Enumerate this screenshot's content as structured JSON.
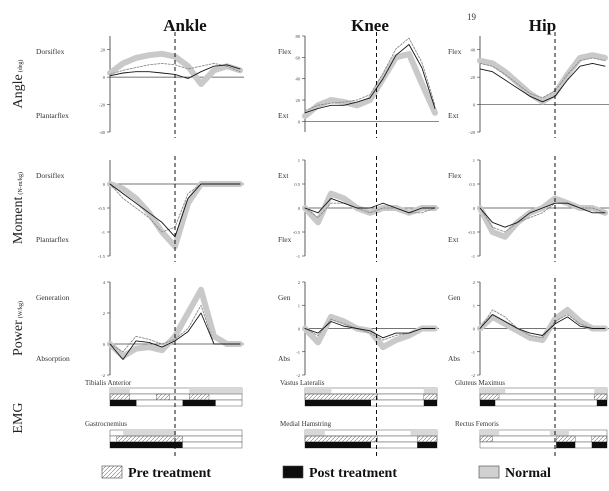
{
  "figure": {
    "page_number": "19",
    "legend": [
      "Pre treatment",
      "Post treatment",
      "Normal"
    ]
  },
  "chart_data": [
    {
      "type": "line",
      "joint": "Ankle",
      "measure": "Angle",
      "row_label": "Angle",
      "row_unit": "(deg)",
      "upper_label": "Dorsiflex",
      "lower_label": "Plantarflex",
      "x": [
        0,
        10,
        20,
        30,
        40,
        50,
        60,
        70,
        80,
        90,
        100
      ],
      "ylim": [
        -40,
        30
      ],
      "yticks": [
        -40,
        -20,
        0,
        20
      ],
      "series": [
        {
          "name": "Pre treatment",
          "values": [
            2,
            5,
            7,
            9,
            10,
            9,
            6,
            8,
            10,
            8,
            4
          ]
        },
        {
          "name": "Post treatment",
          "values": [
            1,
            3,
            4,
            4,
            3,
            2,
            -1,
            4,
            8,
            9,
            6
          ]
        },
        {
          "name": "Normal",
          "values": [
            3,
            10,
            14,
            16,
            17,
            15,
            8,
            -5,
            5,
            8,
            5
          ]
        }
      ],
      "vline": 50
    },
    {
      "type": "line",
      "joint": "Knee",
      "measure": "Angle",
      "upper_label": "Flex",
      "lower_label": "Ext",
      "x": [
        0,
        10,
        20,
        30,
        40,
        50,
        60,
        70,
        80,
        90,
        100
      ],
      "ylim": [
        -10,
        80
      ],
      "yticks": [
        0,
        20,
        40,
        60,
        80
      ],
      "series": [
        {
          "name": "Pre treatment",
          "values": [
            10,
            15,
            17,
            18,
            20,
            25,
            45,
            68,
            78,
            55,
            15
          ]
        },
        {
          "name": "Post treatment",
          "values": [
            8,
            12,
            15,
            15,
            18,
            22,
            40,
            62,
            72,
            50,
            12
          ]
        },
        {
          "name": "Normal",
          "values": [
            5,
            15,
            20,
            18,
            15,
            20,
            40,
            60,
            63,
            35,
            8
          ]
        }
      ],
      "vline": 55
    },
    {
      "type": "line",
      "joint": "Hip",
      "measure": "Angle",
      "upper_label": "Flex",
      "lower_label": "Ext",
      "x": [
        0,
        10,
        20,
        30,
        40,
        50,
        60,
        70,
        80,
        90,
        100
      ],
      "ylim": [
        -20,
        50
      ],
      "yticks": [
        -20,
        0,
        20,
        40
      ],
      "series": [
        {
          "name": "Pre treatment",
          "values": [
            30,
            28,
            22,
            15,
            8,
            5,
            10,
            22,
            32,
            34,
            32
          ]
        },
        {
          "name": "Post treatment",
          "values": [
            26,
            24,
            18,
            12,
            6,
            2,
            6,
            18,
            28,
            30,
            28
          ]
        },
        {
          "name": "Normal",
          "values": [
            32,
            30,
            24,
            16,
            8,
            2,
            8,
            22,
            34,
            36,
            34
          ]
        }
      ],
      "vline": 60
    },
    {
      "type": "line",
      "joint": "Ankle",
      "measure": "Moment",
      "row_label": "Moment",
      "row_unit": "(N-m/kg)",
      "upper_label": "Dorsiflex",
      "lower_label": "Plantarflex",
      "x": [
        0,
        10,
        20,
        30,
        40,
        50,
        60,
        70,
        80,
        90,
        100
      ],
      "ylim": [
        -1.5,
        0.5
      ],
      "yticks": [
        -1.5,
        -1,
        -0.5,
        0
      ],
      "series": [
        {
          "name": "Pre treatment",
          "values": [
            0,
            -0.3,
            -0.5,
            -0.7,
            -1.0,
            -0.9,
            -0.2,
            0,
            0,
            0,
            0
          ]
        },
        {
          "name": "Post treatment",
          "values": [
            0,
            -0.2,
            -0.4,
            -0.6,
            -0.8,
            -1.1,
            -0.3,
            0,
            0,
            0,
            0
          ]
        },
        {
          "name": "Normal",
          "values": [
            0,
            -0.1,
            -0.3,
            -0.6,
            -1.0,
            -1.3,
            -0.4,
            0,
            0,
            0,
            0
          ]
        }
      ],
      "vline": 50
    },
    {
      "type": "line",
      "joint": "Knee",
      "measure": "Moment",
      "upper_label": "Ext",
      "lower_label": "Flex",
      "x": [
        0,
        10,
        20,
        30,
        40,
        50,
        60,
        70,
        80,
        90,
        100
      ],
      "ylim": [
        -1.0,
        1.0
      ],
      "yticks": [
        -1,
        -0.5,
        0,
        0.5,
        1
      ],
      "series": [
        {
          "name": "Pre treatment",
          "values": [
            0,
            -0.2,
            0.1,
            0.1,
            0,
            -0.1,
            0,
            0,
            -0.1,
            -0.1,
            0
          ]
        },
        {
          "name": "Post treatment",
          "values": [
            0,
            -0.1,
            0.2,
            0.1,
            0,
            0,
            0.1,
            0,
            -0.1,
            0,
            0
          ]
        },
        {
          "name": "Normal",
          "values": [
            0,
            -0.3,
            0.3,
            0.2,
            0,
            -0.1,
            0,
            0,
            -0.1,
            0,
            0
          ]
        }
      ],
      "vline": 55
    },
    {
      "type": "line",
      "joint": "Hip",
      "measure": "Moment",
      "upper_label": "Flex",
      "lower_label": "Ext",
      "x": [
        0,
        10,
        20,
        30,
        40,
        50,
        60,
        70,
        80,
        90,
        100
      ],
      "ylim": [
        -1.0,
        1.0
      ],
      "yticks": [
        -1,
        -0.5,
        0,
        0.5,
        1
      ],
      "series": [
        {
          "name": "Pre treatment",
          "values": [
            0,
            -0.4,
            -0.5,
            -0.3,
            -0.2,
            -0.1,
            0.1,
            0.1,
            0,
            0,
            -0.1
          ]
        },
        {
          "name": "Post treatment",
          "values": [
            0,
            -0.3,
            -0.4,
            -0.3,
            -0.1,
            0,
            0.1,
            0.1,
            0,
            -0.1,
            -0.1
          ]
        },
        {
          "name": "Normal",
          "values": [
            0,
            -0.5,
            -0.6,
            -0.3,
            -0.1,
            0,
            0.2,
            0.1,
            0,
            0,
            -0.1
          ]
        }
      ],
      "vline": 60
    },
    {
      "type": "line",
      "joint": "Ankle",
      "measure": "Power",
      "row_label": "Power",
      "row_unit": "(W/kg)",
      "upper_label": "Generation",
      "lower_label": "Absorption",
      "x": [
        0,
        10,
        20,
        30,
        40,
        50,
        60,
        70,
        80,
        90,
        100
      ],
      "ylim": [
        -2,
        4
      ],
      "yticks": [
        -2,
        0,
        2,
        4
      ],
      "series": [
        {
          "name": "Pre treatment",
          "values": [
            0,
            -0.5,
            0.5,
            0.3,
            0,
            0.3,
            1.0,
            2.5,
            0,
            0,
            0
          ]
        },
        {
          "name": "Post treatment",
          "values": [
            0,
            -1.0,
            0.2,
            0.1,
            -0.2,
            0.2,
            0.8,
            2.0,
            0,
            0,
            0
          ]
        },
        {
          "name": "Normal",
          "values": [
            0,
            -0.8,
            -0.3,
            -0.2,
            -0.4,
            0.5,
            2.0,
            3.5,
            0.5,
            0,
            0
          ]
        }
      ],
      "vline": 50
    },
    {
      "type": "line",
      "joint": "Knee",
      "measure": "Power",
      "upper_label": "Gen",
      "lower_label": "Abs",
      "x": [
        0,
        10,
        20,
        30,
        40,
        50,
        60,
        70,
        80,
        90,
        100
      ],
      "ylim": [
        -2,
        2
      ],
      "yticks": [
        -2,
        -1,
        0,
        1,
        2
      ],
      "series": [
        {
          "name": "Pre treatment",
          "values": [
            0,
            -0.3,
            0.4,
            0.2,
            0,
            -0.2,
            -0.5,
            -0.3,
            -0.2,
            0,
            0
          ]
        },
        {
          "name": "Post treatment",
          "values": [
            0,
            -0.2,
            0.3,
            0.1,
            0,
            -0.1,
            -0.4,
            -0.2,
            -0.2,
            0,
            0
          ]
        },
        {
          "name": "Normal",
          "values": [
            0,
            -0.6,
            0.5,
            0.3,
            0,
            -0.1,
            -0.8,
            -0.5,
            -0.3,
            0,
            0
          ]
        }
      ],
      "vline": 55
    },
    {
      "type": "line",
      "joint": "Hip",
      "measure": "Power",
      "upper_label": "Gen",
      "lower_label": "Abs",
      "x": [
        0,
        10,
        20,
        30,
        40,
        50,
        60,
        70,
        80,
        90,
        100
      ],
      "ylim": [
        -2,
        2
      ],
      "yticks": [
        -2,
        -1,
        0,
        1,
        2
      ],
      "series": [
        {
          "name": "Pre treatment",
          "values": [
            0,
            0.8,
            0.5,
            0,
            -0.3,
            -0.4,
            0.3,
            0.6,
            0.2,
            0,
            0
          ]
        },
        {
          "name": "Post treatment",
          "values": [
            0,
            0.6,
            0.3,
            0,
            -0.2,
            -0.3,
            0.2,
            0.5,
            0.1,
            0,
            0
          ]
        },
        {
          "name": "Normal",
          "values": [
            0,
            0.5,
            0.2,
            -0.1,
            -0.4,
            -0.5,
            0.4,
            0.8,
            0.3,
            0,
            0
          ]
        }
      ],
      "vline": 60
    }
  ],
  "emg": {
    "row_label": "EMG",
    "columns": [
      {
        "joint": "Ankle",
        "muscles": [
          {
            "name": "Tibialis Anterior",
            "pre": [
              [
                0,
                15
              ],
              [
                35,
                45
              ],
              [
                60,
                75
              ]
            ],
            "post": [
              [
                0,
                20
              ],
              [
                55,
                80
              ]
            ],
            "normal": [
              [
                0,
                15
              ],
              [
                60,
                100
              ]
            ]
          },
          {
            "name": "Gastrocnemius",
            "pre": [
              [
                5,
                55
              ]
            ],
            "post": [
              [
                0,
                55
              ]
            ],
            "normal": [
              [
                10,
                50
              ]
            ]
          }
        ]
      },
      {
        "joint": "Knee",
        "muscles": [
          {
            "name": "Vastus Lateralis",
            "pre": [
              [
                0,
                55
              ],
              [
                90,
                100
              ]
            ],
            "post": [
              [
                0,
                50
              ],
              [
                90,
                100
              ]
            ],
            "normal": [
              [
                0,
                20
              ],
              [
                90,
                100
              ]
            ]
          },
          {
            "name": "Medial Hamstring",
            "pre": [
              [
                0,
                55
              ],
              [
                85,
                100
              ]
            ],
            "post": [
              [
                0,
                50
              ],
              [
                85,
                100
              ]
            ],
            "normal": [
              [
                0,
                15
              ],
              [
                80,
                100
              ]
            ]
          }
        ]
      },
      {
        "joint": "Hip",
        "muscles": [
          {
            "name": "Gluteus Maximus",
            "pre": [
              [
                0,
                15
              ],
              [
                90,
                100
              ]
            ],
            "post": [
              [
                0,
                12
              ],
              [
                92,
                100
              ]
            ],
            "normal": [
              [
                0,
                20
              ],
              [
                90,
                100
              ]
            ]
          },
          {
            "name": "Rectus Femoris",
            "pre": [
              [
                0,
                10
              ],
              [
                60,
                75
              ],
              [
                88,
                100
              ]
            ],
            "post": [
              [
                60,
                75
              ],
              [
                88,
                100
              ]
            ],
            "normal": [
              [
                0,
                15
              ],
              [
                55,
                70
              ]
            ]
          }
        ]
      }
    ]
  }
}
